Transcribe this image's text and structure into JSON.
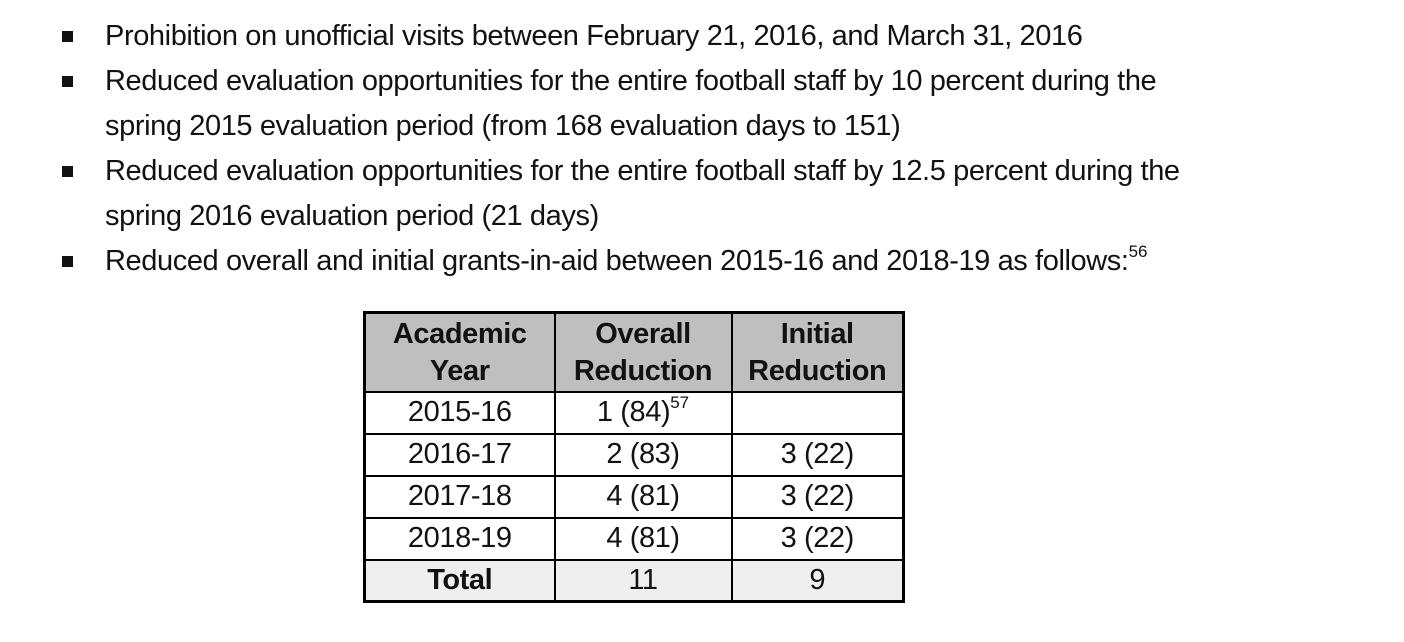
{
  "theme": {
    "page_bg": "#ffffff",
    "text_color": "#121212",
    "table_border": "#000000",
    "header_bg": "#bfbfbf",
    "total_bg": "#eeefee"
  },
  "bullets": {
    "items": [
      {
        "lines": [
          "Prohibition on unofficial visits between February 21, 2016, and March 31, 2016"
        ]
      },
      {
        "lines": [
          "Reduced evaluation opportunities for the entire football staff by 10 percent during the",
          "spring 2015 evaluation period (from 168 evaluation days to 151)"
        ]
      },
      {
        "lines": [
          "Reduced evaluation opportunities for the entire football staff by 12.5 percent during the",
          "spring 2016 evaluation period (21 days)"
        ]
      },
      {
        "lines": [
          "Reduced overall and initial grants-in-aid between 2015-16 and 2018-19 as follows:"
        ],
        "footnote_ref": "56"
      }
    ]
  },
  "table": {
    "headers": [
      {
        "line1": "Academic",
        "line2": "Year"
      },
      {
        "line1": "Overall",
        "line2": "Reduction"
      },
      {
        "line1": "Initial",
        "line2": "Reduction"
      }
    ],
    "rows": [
      {
        "year": "2015-16",
        "overall": "1 (84)",
        "overall_footnote": "57",
        "initial": ""
      },
      {
        "year": "2016-17",
        "overall": "2 (83)",
        "initial": "3 (22)"
      },
      {
        "year": "2017-18",
        "overall": "4 (81)",
        "initial": "3 (22)"
      },
      {
        "year": "2018-19",
        "overall": "4 (81)",
        "initial": "3 (22)"
      }
    ],
    "total": {
      "label": "Total",
      "overall": "11",
      "initial": "9"
    }
  }
}
